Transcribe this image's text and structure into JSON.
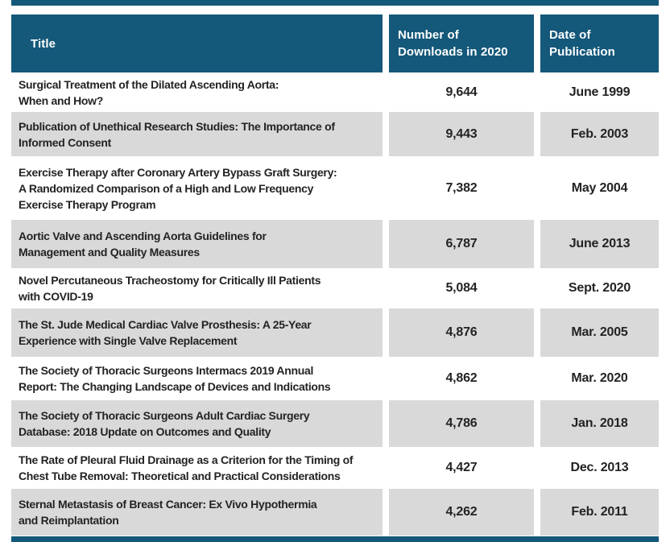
{
  "colors": {
    "header_bg": "#14587A",
    "accent_bar": "#14587A",
    "row_alt_bg": "#D9D9D9",
    "header_text": "#FFFFFF",
    "body_text": "#232323"
  },
  "chart_data": {
    "type": "table",
    "title": "",
    "columns": [
      "Title",
      "Number of Downloads in 2020",
      "Date of Publication"
    ],
    "column_header_lines": [
      [
        "Title"
      ],
      [
        "Number of",
        "Downloads in 2020"
      ],
      [
        "Date of",
        "Publication"
      ]
    ],
    "rows": [
      {
        "title": "Surgical Treatment of the Dilated Ascending Aorta: When and How?",
        "title_lines": [
          "Surgical Treatment of the Dilated Ascending Aorta:",
          "When and How?"
        ],
        "downloads_2020": 9644,
        "downloads_display": "9,644",
        "date_of_publication": "June 1999"
      },
      {
        "title": "Publication of Unethical Research Studies: The Importance of Informed Consent",
        "title_lines": [
          "Publication of Unethical Research Studies: The Importance of",
          "Informed Consent"
        ],
        "downloads_2020": 9443,
        "downloads_display": "9,443",
        "date_of_publication": "Feb. 2003"
      },
      {
        "title": "Exercise Therapy after Coronary Artery Bypass Graft Surgery: A Randomized Comparison of a High and Low Frequency Exercise Therapy Program",
        "title_lines": [
          "Exercise Therapy after Coronary Artery Bypass Graft Surgery:",
          "A Randomized Comparison of a High and Low Frequency",
          "Exercise Therapy Program"
        ],
        "downloads_2020": 7382,
        "downloads_display": "7,382",
        "date_of_publication": "May 2004"
      },
      {
        "title": "Aortic Valve and Ascending Aorta Guidelines for Management and Quality Measures",
        "title_lines": [
          "Aortic Valve and Ascending Aorta Guidelines for",
          "Management and Quality Measures"
        ],
        "downloads_2020": 6787,
        "downloads_display": "6,787",
        "date_of_publication": "June 2013"
      },
      {
        "title": "Novel Percutaneous Tracheostomy for Critically Ill Patients with COVID-19",
        "title_lines": [
          "Novel Percutaneous Tracheostomy for Critically Ill Patients",
          "with COVID-19"
        ],
        "downloads_2020": 5084,
        "downloads_display": "5,084",
        "date_of_publication": "Sept. 2020"
      },
      {
        "title": "The St. Jude Medical Cardiac Valve Prosthesis: A 25-Year Experience with Single Valve Replacement",
        "title_lines": [
          "The St. Jude Medical Cardiac Valve Prosthesis: A 25-Year",
          "Experience with Single Valve Replacement"
        ],
        "downloads_2020": 4876,
        "downloads_display": "4,876",
        "date_of_publication": "Mar. 2005"
      },
      {
        "title": "The Society of Thoracic Surgeons Intermacs 2019 Annual Report: The Changing Landscape of Devices and Indications",
        "title_lines": [
          "The Society of Thoracic Surgeons Intermacs 2019 Annual",
          "Report: The Changing Landscape of Devices and Indications"
        ],
        "downloads_2020": 4862,
        "downloads_display": "4,862",
        "date_of_publication": "Mar. 2020"
      },
      {
        "title": "The Society of Thoracic Surgeons Adult Cardiac Surgery Database: 2018 Update on Outcomes and Quality",
        "title_lines": [
          "The Society of Thoracic Surgeons Adult Cardiac Surgery",
          "Database: 2018 Update on Outcomes and Quality"
        ],
        "downloads_2020": 4786,
        "downloads_display": "4,786",
        "date_of_publication": "Jan. 2018"
      },
      {
        "title": "The Rate of Pleural Fluid Drainage as a Criterion for the Timing of Chest Tube Removal: Theoretical and Practical Considerations",
        "title_lines": [
          "The Rate of Pleural Fluid Drainage as a Criterion for the Timing of",
          "Chest Tube Removal: Theoretical and Practical Considerations"
        ],
        "downloads_2020": 4427,
        "downloads_display": "4,427",
        "date_of_publication": "Dec. 2013"
      },
      {
        "title": "Sternal Metastasis of Breast Cancer: Ex Vivo Hypothermia and Reimplantation",
        "title_lines": [
          "Sternal Metastasis of Breast Cancer: Ex Vivo Hypothermia",
          "and Reimplantation"
        ],
        "downloads_2020": 4262,
        "downloads_display": "4,262",
        "date_of_publication": "Feb. 2011"
      }
    ]
  }
}
